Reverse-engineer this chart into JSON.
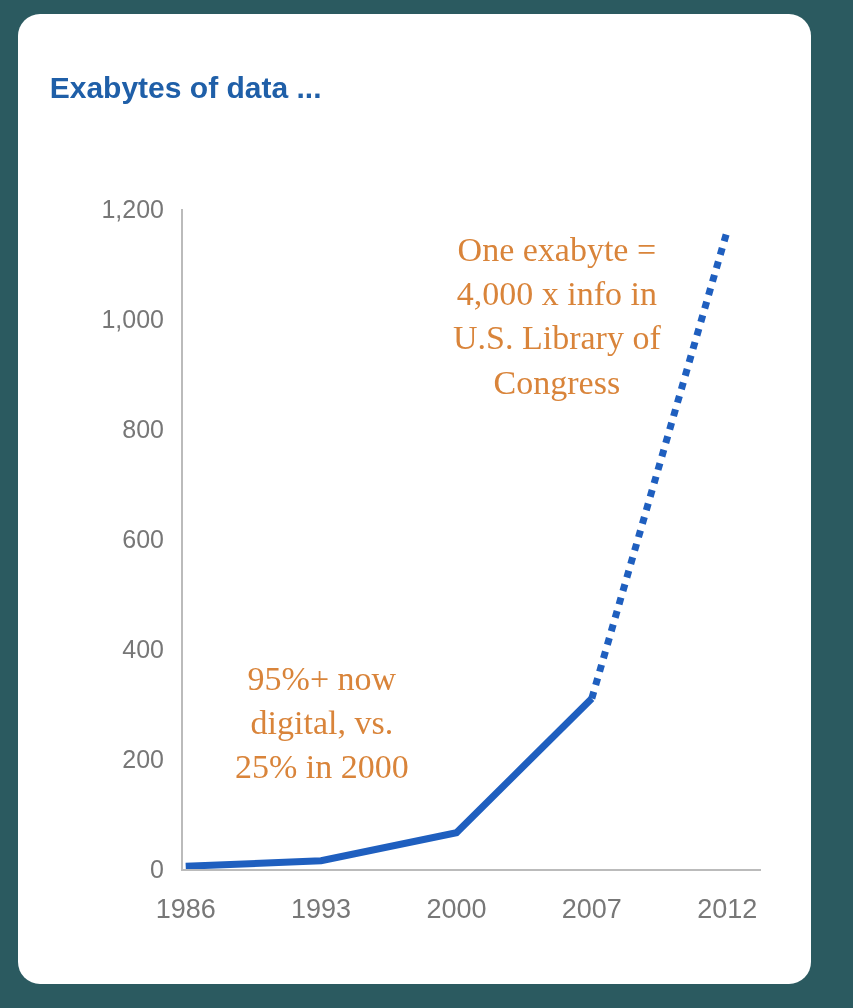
{
  "chart_data": {
    "type": "line",
    "title": "Exabytes of data ...",
    "categories": [
      "1986",
      "1993",
      "2000",
      "2007",
      "2012"
    ],
    "series": [
      {
        "color": "#1f5fbf",
        "values": [
          5,
          15,
          66,
          310,
          null
        ],
        "line_style": "solid"
      },
      {
        "color": "#1f5fbf",
        "values": [
          null,
          null,
          null,
          310,
          1160
        ],
        "line_style": "dotted"
      }
    ],
    "ylim": [
      0,
      1200
    ],
    "yticks": [
      0,
      200,
      400,
      600,
      800,
      {
        "value": 1000,
        "label": "1,000"
      },
      {
        "value": 1200,
        "label": "1,200"
      }
    ],
    "grid": false,
    "marker": "none",
    "annotations": [
      "One exabyte =\n4,000 x info in\nU.S. Library of\nCongress",
      "95%+ now\ndigital, vs.\n25% in 2000"
    ]
  }
}
